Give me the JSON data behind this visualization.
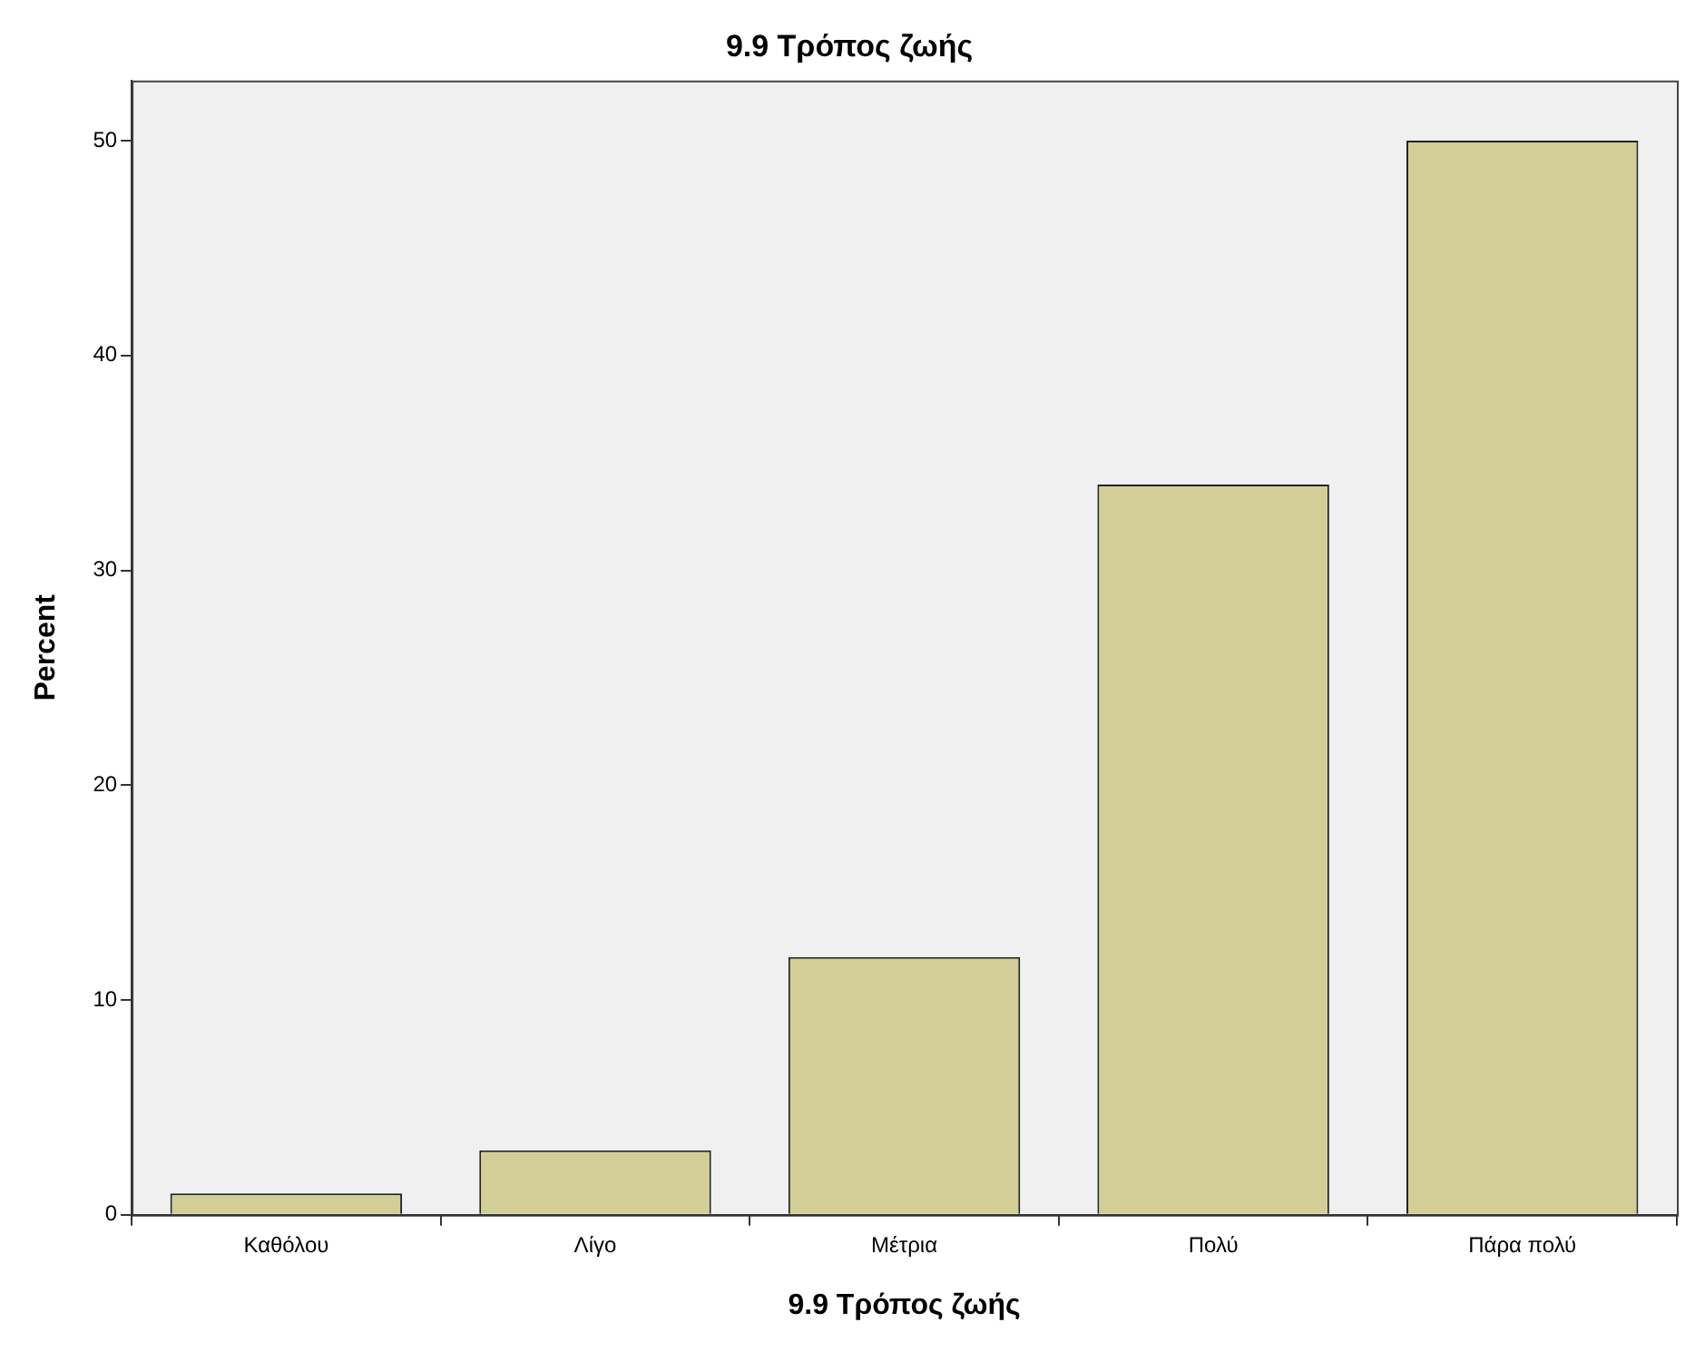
{
  "chart_data": {
    "type": "bar",
    "title": "9.9 Τρόπος ζωής",
    "xlabel": "9.9 Τρόπος ζωής",
    "ylabel": "Percent",
    "categories": [
      "Καθόλου",
      "Λίγο",
      "Μέτρια",
      "Πολύ",
      "Πάρα πολύ"
    ],
    "values": [
      1,
      3,
      12,
      34,
      50
    ],
    "color": "#d3ce97",
    "ylim": [
      0,
      52.8
    ],
    "yticks": [
      0,
      10,
      20,
      30,
      40,
      50
    ]
  }
}
